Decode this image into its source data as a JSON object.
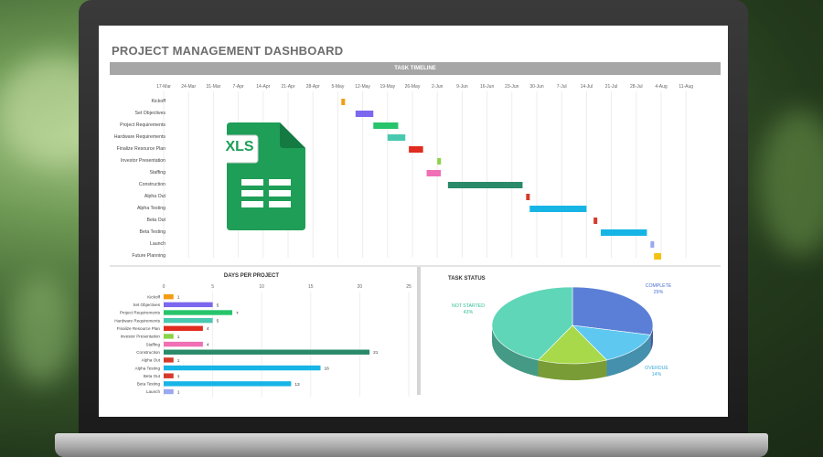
{
  "dashboard": {
    "title": "PROJECT MANAGEMENT DASHBOARD",
    "timeline_header": "TASK TIMELINE",
    "icon_label": "XLS"
  },
  "colors": {
    "orange": "#f39c12",
    "purple": "#7b68ee",
    "green": "#27c46b",
    "mint": "#48c9b0",
    "red": "#e02b1f",
    "lime": "#8bd34a",
    "pink": "#f06fb5",
    "teal": "#2a8a6a",
    "crimson": "#d63a2a",
    "cyan": "#17b4e6",
    "lavender": "#9aa8f0",
    "yellow": "#f4c20d",
    "xls_green": "#1e9e57"
  },
  "chart_data": [
    {
      "type": "gantt",
      "title": "TASK TIMELINE",
      "date_ticks": [
        "17-Mar",
        "24-Mar",
        "31-Mar",
        "7-Apr",
        "14-Apr",
        "21-Apr",
        "28-Apr",
        "5-May",
        "12-May",
        "19-May",
        "26-May",
        "2-Jun",
        "9-Jun",
        "16-Jun",
        "23-Jun",
        "30-Jun",
        "7-Jul",
        "14-Jul",
        "21-Jul",
        "28-Jul",
        "4-Aug",
        "11-Aug"
      ],
      "tasks": [
        {
          "name": "Kickoff",
          "start": "2024-05-06",
          "days": 1,
          "color": "orange"
        },
        {
          "name": "Set Objectives",
          "start": "2024-05-10",
          "days": 5,
          "color": "purple"
        },
        {
          "name": "Project Requirements",
          "start": "2024-05-15",
          "days": 7,
          "color": "green"
        },
        {
          "name": "Hardware Requirements",
          "start": "2024-05-19",
          "days": 5,
          "color": "mint"
        },
        {
          "name": "Finalize Resource Plan",
          "start": "2024-05-25",
          "days": 4,
          "color": "red"
        },
        {
          "name": "Investor Presentation",
          "start": "2024-06-02",
          "days": 1,
          "color": "lime"
        },
        {
          "name": "Staffing",
          "start": "2024-05-30",
          "days": 4,
          "color": "pink"
        },
        {
          "name": "Construction",
          "start": "2024-06-05",
          "days": 21,
          "color": "teal"
        },
        {
          "name": "Alpha Out",
          "start": "2024-06-27",
          "days": 1,
          "color": "crimson"
        },
        {
          "name": "Alpha Testing",
          "start": "2024-06-28",
          "days": 16,
          "color": "cyan"
        },
        {
          "name": "Beta Out",
          "start": "2024-07-16",
          "days": 1,
          "color": "crimson"
        },
        {
          "name": "Beta Testing",
          "start": "2024-07-18",
          "days": 13,
          "color": "cyan"
        },
        {
          "name": "Launch",
          "start": "2024-08-01",
          "days": 1,
          "color": "lavender"
        },
        {
          "name": "Future Planning",
          "start": "2024-08-02",
          "days": 2,
          "color": "yellow"
        }
      ]
    },
    {
      "type": "bar",
      "orientation": "horizontal",
      "title": "DAYS PER PROJECT",
      "xlim": [
        0,
        25
      ],
      "x_ticks": [
        0,
        5,
        10,
        15,
        20,
        25
      ],
      "categories": [
        "Kickoff",
        "Set Objectives",
        "Project Requirements",
        "Hardware Requirements",
        "Finalize Resource Plan",
        "Investor Presentation",
        "Staffing",
        "Construction",
        "Alpha Out",
        "Alpha Testing",
        "Beta Out",
        "Beta Testing",
        "Launch"
      ],
      "values": [
        1,
        5,
        7,
        5,
        4,
        1,
        4,
        21,
        1,
        16,
        1,
        13,
        1
      ],
      "value_labels": [
        "1",
        "5",
        "7",
        "5",
        "4",
        "1",
        "4",
        "21",
        "1",
        "16",
        "1",
        "13",
        "1"
      ],
      "colors": [
        "orange",
        "purple",
        "green",
        "mint",
        "red",
        "lime",
        "pink",
        "teal",
        "crimson",
        "cyan",
        "crimson",
        "cyan",
        "lavender"
      ]
    },
    {
      "type": "pie",
      "style": "3d",
      "title": "TASK STATUS",
      "slices": [
        {
          "label": "COMPLETE",
          "value": 29,
          "value_label": "29%",
          "color": "#5b7fd6"
        },
        {
          "label": "OVERDUE",
          "value": 14,
          "value_label": "14%",
          "color": "#5fc8f0"
        },
        {
          "label": "",
          "value": 14,
          "value_label": "",
          "color": "#a8d94b"
        },
        {
          "label": "NOT STARTED",
          "value": 43,
          "value_label": "43%",
          "color": "#5fd6b8"
        }
      ]
    }
  ]
}
